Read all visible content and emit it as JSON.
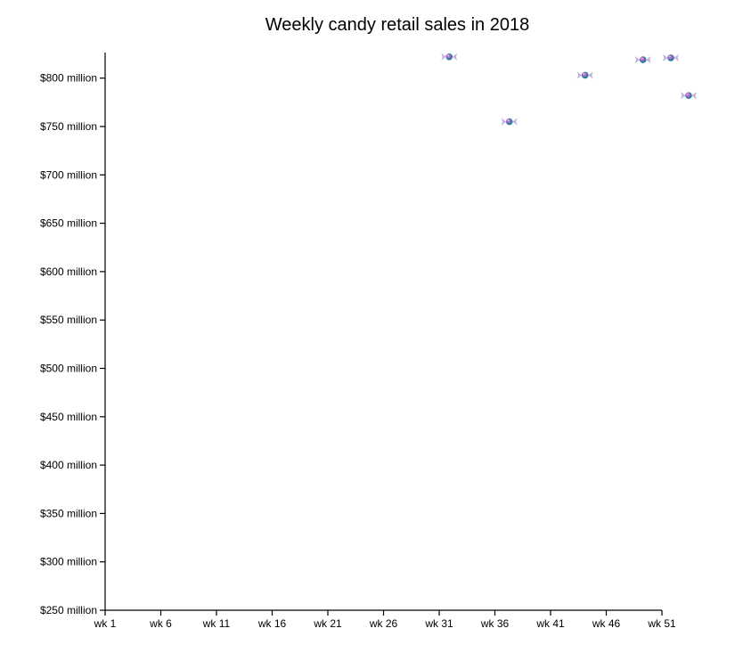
{
  "chart_data": {
    "type": "scatter",
    "title": "Weekly candy retail sales in 2018",
    "xlabel": "",
    "ylabel": "",
    "x_domain": [
      1,
      54
    ],
    "ylim": [
      250,
      825
    ],
    "x_ticks": [
      {
        "value": 1,
        "label": "wk 1"
      },
      {
        "value": 6,
        "label": "wk 6"
      },
      {
        "value": 11,
        "label": "wk 11"
      },
      {
        "value": 16,
        "label": "wk 16"
      },
      {
        "value": 21,
        "label": "wk 21"
      },
      {
        "value": 26,
        "label": "wk 26"
      },
      {
        "value": 31,
        "label": "wk 31"
      },
      {
        "value": 36,
        "label": "wk 36"
      },
      {
        "value": 41,
        "label": "wk 41"
      },
      {
        "value": 46,
        "label": "wk 46"
      },
      {
        "value": 51,
        "label": "wk 51"
      }
    ],
    "y_ticks": [
      {
        "value": 250,
        "label": "$250 million"
      },
      {
        "value": 300,
        "label": "$300 million"
      },
      {
        "value": 350,
        "label": "$350 million"
      },
      {
        "value": 400,
        "label": "$400 million"
      },
      {
        "value": 450,
        "label": "$450 million"
      },
      {
        "value": 500,
        "label": "$500 million"
      },
      {
        "value": 550,
        "label": "$550 million"
      },
      {
        "value": 600,
        "label": "$600 million"
      },
      {
        "value": 650,
        "label": "$650 million"
      },
      {
        "value": 700,
        "label": "$700 million"
      },
      {
        "value": 750,
        "label": "$750 million"
      },
      {
        "value": 800,
        "label": "$800 million"
      }
    ],
    "points": [
      {
        "week": 31.9,
        "value": 822
      },
      {
        "week": 37.3,
        "value": 755
      },
      {
        "week": 44.1,
        "value": 803
      },
      {
        "week": 49.3,
        "value": 819
      },
      {
        "week": 51.8,
        "value": 821
      },
      {
        "week": 53.4,
        "value": 782
      }
    ],
    "marker": "candy-icon",
    "colors": {
      "candy_core": "#2e7fa0",
      "candy_highlight": "#c064d0",
      "candy_wrapper": "#b9a6d8",
      "axis": "#000000"
    },
    "grid": false,
    "legend": "none"
  }
}
